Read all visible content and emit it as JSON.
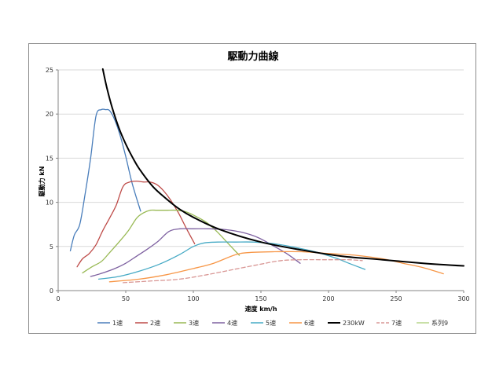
{
  "chart_data": {
    "type": "line",
    "title": "駆動力曲線",
    "xlabel": "速度  km/h",
    "ylabel": "駆動力  kN",
    "xlim": [
      0,
      300
    ],
    "ylim": [
      0,
      25
    ],
    "xticks": [
      "0",
      "50",
      "100",
      "150",
      "200",
      "250",
      "300"
    ],
    "yticks": [
      "0",
      "5",
      "10",
      "15",
      "20",
      "25"
    ],
    "grid": {
      "horizontal": true,
      "vertical": false
    },
    "legend_position": "bottom",
    "series": [
      {
        "name": "1速",
        "color": "#4a7ebb",
        "dash": false,
        "x": [
          9,
          12,
          16,
          20,
          24,
          28,
          32,
          35,
          38,
          42,
          46,
          50,
          55,
          61
        ],
        "y": [
          4.5,
          6.3,
          7.5,
          11,
          15,
          19.8,
          20.5,
          20.5,
          20.4,
          19.3,
          17.5,
          15.2,
          12,
          9
        ]
      },
      {
        "name": "2速",
        "color": "#be4b48",
        "dash": false,
        "x": [
          14,
          18,
          23,
          28,
          33,
          38,
          43,
          48,
          53,
          58,
          63,
          68,
          73,
          78,
          83,
          89,
          95,
          101
        ],
        "y": [
          2.7,
          3.6,
          4.2,
          5.2,
          6.8,
          8.2,
          9.7,
          11.8,
          12.3,
          12.4,
          12.3,
          12.3,
          12.0,
          11.3,
          10.3,
          8.8,
          7.0,
          5.3
        ]
      },
      {
        "name": "3速",
        "color": "#98b954",
        "dash": false,
        "x": [
          18,
          25,
          32,
          38,
          45,
          52,
          58,
          63,
          68,
          73,
          80,
          88,
          95,
          102,
          110,
          118,
          126,
          134
        ],
        "y": [
          2.0,
          2.7,
          3.3,
          4.3,
          5.5,
          6.8,
          8.2,
          8.8,
          9.1,
          9.1,
          9.1,
          9.1,
          8.9,
          8.4,
          7.7,
          6.6,
          5.3,
          4.0
        ]
      },
      {
        "name": "4速",
        "color": "#7d60a0",
        "dash": false,
        "x": [
          24,
          33,
          42,
          50,
          58,
          66,
          74,
          82,
          90,
          100,
          112,
          124,
          136,
          148,
          160,
          170,
          179
        ],
        "y": [
          1.6,
          2.0,
          2.5,
          3.1,
          3.9,
          4.7,
          5.6,
          6.7,
          7.0,
          7.0,
          7.0,
          6.9,
          6.6,
          6.0,
          5.0,
          4.1,
          3.1
        ]
      },
      {
        "name": "5速",
        "color": "#46aac5",
        "dash": false,
        "x": [
          30,
          45,
          60,
          75,
          90,
          100,
          108,
          118,
          130,
          145,
          160,
          175,
          190,
          205,
          215,
          227
        ],
        "y": [
          1.3,
          1.6,
          2.2,
          3.0,
          4.1,
          5.0,
          5.4,
          5.5,
          5.5,
          5.5,
          5.3,
          4.9,
          4.4,
          3.7,
          3.1,
          2.4
        ]
      },
      {
        "name": "6速",
        "color": "#f79646",
        "dash": false,
        "x": [
          38,
          60,
          80,
          100,
          115,
          130,
          140,
          160,
          180,
          200,
          220,
          240,
          255,
          270,
          285
        ],
        "y": [
          1.0,
          1.3,
          1.8,
          2.5,
          3.1,
          4.0,
          4.3,
          4.4,
          4.4,
          4.2,
          4.0,
          3.6,
          3.1,
          2.6,
          1.9
        ]
      },
      {
        "name": "230kW",
        "color": "#000000",
        "dash": false,
        "width": 2,
        "x": [
          33,
          36,
          40,
          45,
          50,
          55,
          60,
          70,
          80,
          90,
          100,
          120,
          150,
          180,
          210,
          240,
          270,
          300
        ],
        "y": [
          25.1,
          23.0,
          20.7,
          18.4,
          16.6,
          15.1,
          13.8,
          11.8,
          10.4,
          9.2,
          8.3,
          6.9,
          5.5,
          4.6,
          3.9,
          3.5,
          3.1,
          2.8
        ]
      },
      {
        "name": "7速",
        "color": "#d99795",
        "dash": true,
        "x": [
          48,
          70,
          90,
          110,
          130,
          150,
          165,
          180,
          195,
          205,
          215,
          225
        ],
        "y": [
          0.9,
          1.1,
          1.3,
          1.8,
          2.4,
          3.0,
          3.4,
          3.5,
          3.5,
          3.5,
          3.5,
          3.4
        ]
      },
      {
        "name": "系列9",
        "color": "#b7d58a",
        "dash": false,
        "x": [],
        "y": []
      }
    ]
  }
}
